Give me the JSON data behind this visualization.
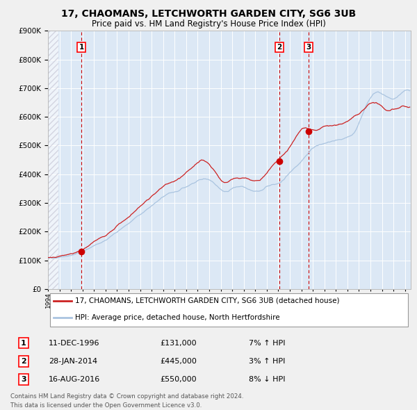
{
  "title1": "17, CHAOMANS, LETCHWORTH GARDEN CITY, SG6 3UB",
  "title2": "Price paid vs. HM Land Registry's House Price Index (HPI)",
  "legend_line1": "17, CHAOMANS, LETCHWORTH GARDEN CITY, SG6 3UB (detached house)",
  "legend_line2": "HPI: Average price, detached house, North Hertfordshire",
  "footer1": "Contains HM Land Registry data © Crown copyright and database right 2024.",
  "footer2": "This data is licensed under the Open Government Licence v3.0.",
  "transactions": [
    {
      "num": 1,
      "date": "11-DEC-1996",
      "price": 131000,
      "pct": "7%",
      "dir": "↑",
      "year": 1996.92
    },
    {
      "num": 2,
      "date": "28-JAN-2014",
      "price": 445000,
      "pct": "3%",
      "dir": "↑",
      "year": 2014.08
    },
    {
      "num": 3,
      "date": "16-AUG-2016",
      "price": 550000,
      "pct": "8%",
      "dir": "↓",
      "year": 2016.63
    }
  ],
  "ylim": [
    0,
    900000
  ],
  "xlim_start": 1994.0,
  "xlim_end": 2025.5,
  "hpi_color": "#aac4e0",
  "price_color": "#cc2222",
  "plot_bg": "#dce8f5",
  "grid_color": "#ffffff",
  "vline_color": "#cc0000",
  "marker_color": "#cc0000",
  "fig_bg": "#f0f0f0",
  "table_rows": [
    [
      "1",
      "11-DEC-1996",
      "£131,000",
      "7% ↑ HPI"
    ],
    [
      "2",
      "28-JAN-2014",
      "£445,000",
      "3% ↑ HPI"
    ],
    [
      "3",
      "16-AUG-2016",
      "£550,000",
      "8% ↓ HPI"
    ]
  ]
}
